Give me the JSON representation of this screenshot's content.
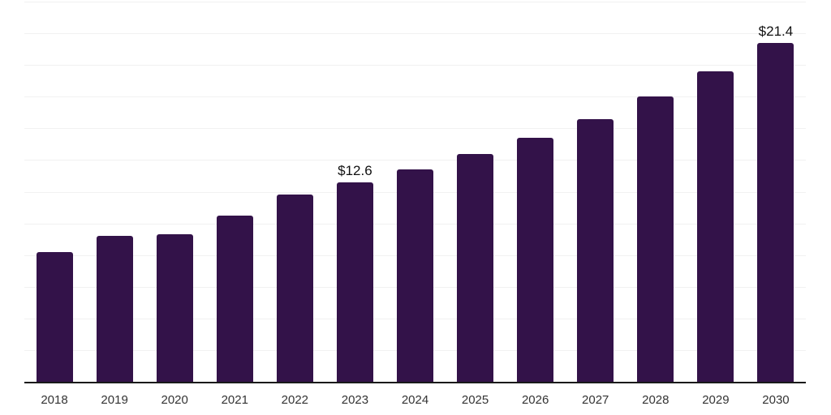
{
  "chart_data": {
    "type": "bar",
    "title": "",
    "xlabel": "",
    "ylabel": "",
    "categories": [
      "2018",
      "2019",
      "2020",
      "2021",
      "2022",
      "2023",
      "2024",
      "2025",
      "2026",
      "2027",
      "2028",
      "2029",
      "2030"
    ],
    "values": [
      8.2,
      9.2,
      9.3,
      10.5,
      11.8,
      12.6,
      13.4,
      14.4,
      15.4,
      16.6,
      18.0,
      19.6,
      21.4
    ],
    "bar_labels": [
      "",
      "",
      "",
      "",
      "",
      "$12.6",
      "",
      "",
      "",
      "",
      "",
      "",
      "$21.4"
    ],
    "ylim": [
      0,
      24
    ],
    "gridline_step": 2,
    "grid": true,
    "legend": false,
    "y_axis_tick_labels_visible": false,
    "colors": {
      "bar": "#331249",
      "axis": "#1a1a1a",
      "gridline": "#f1f1f1",
      "tick_label": "#333333",
      "data_label": "#111111",
      "background": "#ffffff"
    }
  }
}
